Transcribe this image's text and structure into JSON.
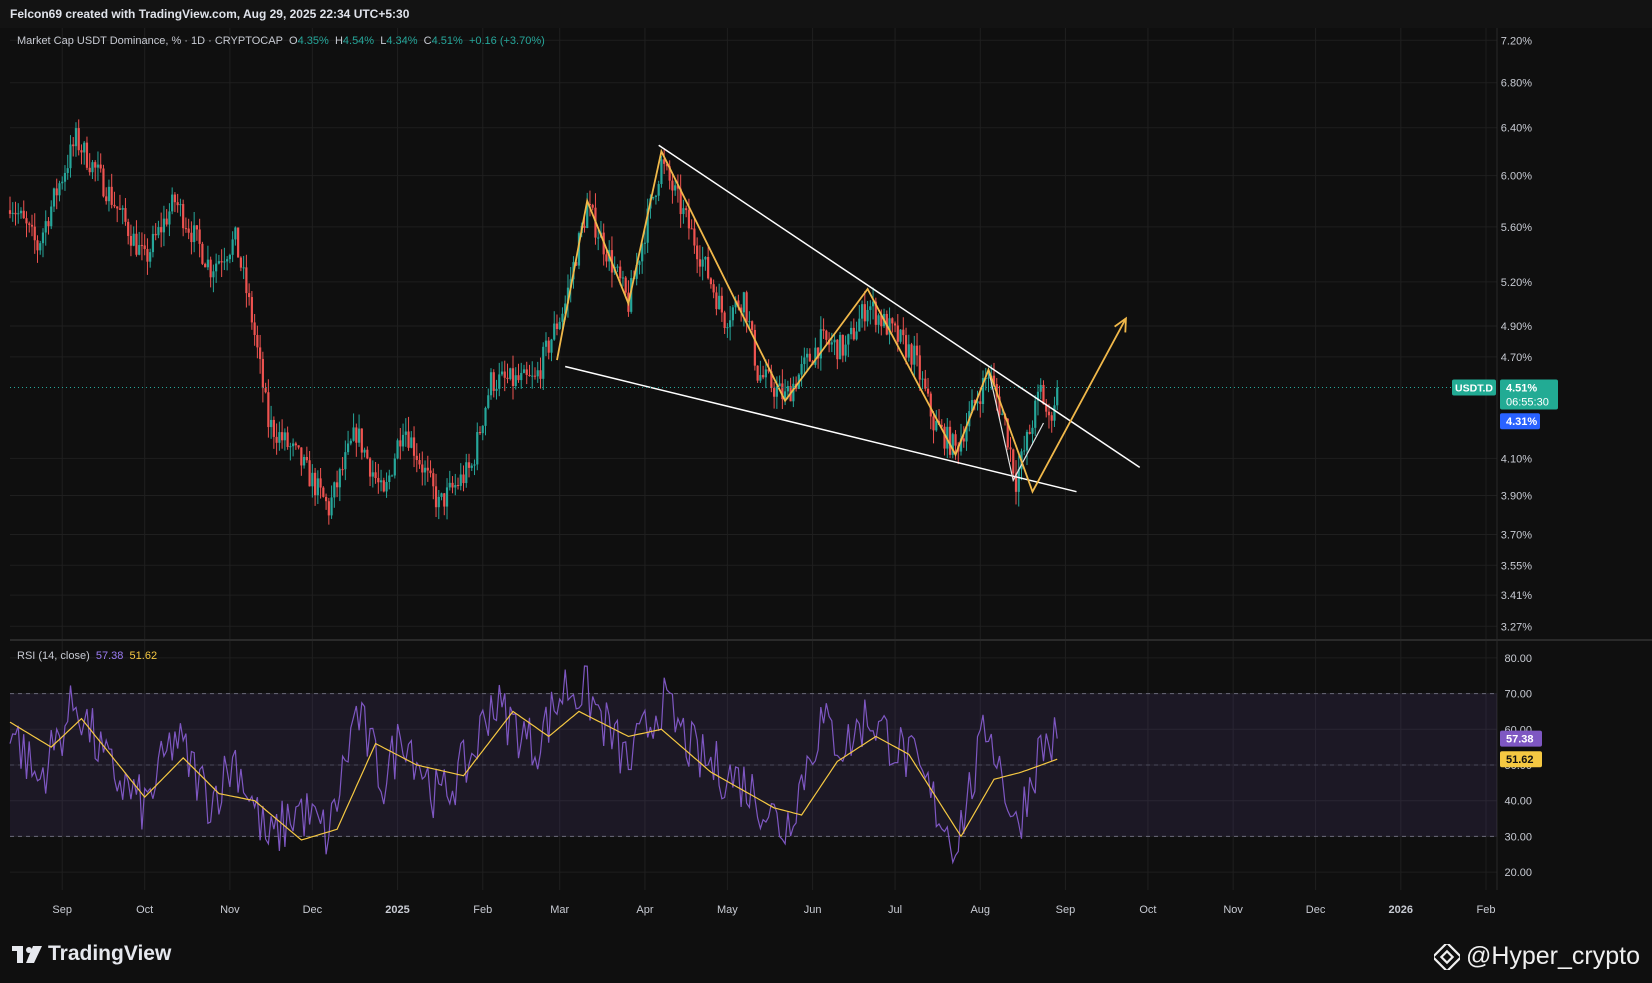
{
  "header": {
    "credit": "Felcon69 created with TradingView.com, Aug 29, 2025 22:34 UTC+5:30"
  },
  "legend": {
    "symbol": "Market Cap USDT Dominance, % · 1D · CRYPTOCAP",
    "o_label": "O",
    "o_value": "4.35%",
    "h_label": "H",
    "h_value": "4.54%",
    "l_label": "L",
    "l_value": "4.34%",
    "c_label": "C",
    "c_value": "4.51%",
    "change": "+0.16 (+3.70%)"
  },
  "rsi_legend": {
    "label": "RSI (14, close)",
    "value1": "57.38",
    "value2": "51.62"
  },
  "footer": {
    "brand": "TradingView",
    "watermark": "@Hyper_crypto"
  },
  "colors": {
    "up": "#26a69a",
    "down": "#ef5350",
    "rsi": "#7e57c2",
    "rsi_ma": "#f5c842",
    "pattern": "#f0b84a",
    "trendline": "#ffffff",
    "badge_green": "#22ab94",
    "badge_blue": "#2962ff"
  },
  "icons": {
    "tv_logo": "tradingview-logo-icon",
    "binance": "binance-diamond-icon"
  },
  "chart_data": [
    {
      "type": "candlestick",
      "title": "Market Cap USDT Dominance, % · 1D · CRYPTOCAP",
      "y_scale": "log",
      "ylim": [
        3.21,
        7.32
      ],
      "y_ticks": [
        "7.20%",
        "6.80%",
        "6.40%",
        "6.00%",
        "5.60%",
        "5.20%",
        "4.90%",
        "4.70%",
        "4.10%",
        "3.90%",
        "3.70%",
        "3.55%",
        "3.41%",
        "3.27%"
      ],
      "y_tick_values": [
        7.2,
        6.8,
        6.4,
        6.0,
        5.6,
        5.2,
        4.9,
        4.7,
        4.1,
        3.9,
        3.7,
        3.55,
        3.41,
        3.27
      ],
      "x_ticks": [
        "Sep",
        "Oct",
        "Nov",
        "Dec",
        "2025",
        "Feb",
        "Mar",
        "Apr",
        "May",
        "Jun",
        "Jul",
        "Aug",
        "Sep",
        "Oct",
        "Nov",
        "Dec",
        "2026",
        "Feb"
      ],
      "x_tick_dates": [
        "2024-09-01",
        "2024-10-01",
        "2024-11-01",
        "2024-12-01",
        "2025-01-01",
        "2025-02-01",
        "2025-03-01",
        "2025-04-01",
        "2025-05-01",
        "2025-06-01",
        "2025-07-01",
        "2025-08-01",
        "2025-09-01",
        "2025-10-01",
        "2025-11-01",
        "2025-12-01",
        "2026-01-01",
        "2026-02-01"
      ],
      "x_range": [
        "2024-08-13",
        "2026-02-05"
      ],
      "anchors": [
        {
          "date": "2024-08-13",
          "value": 5.8
        },
        {
          "date": "2024-08-23",
          "value": 5.45
        },
        {
          "date": "2024-09-06",
          "value": 6.3
        },
        {
          "date": "2024-09-17",
          "value": 5.9
        },
        {
          "date": "2024-10-01",
          "value": 5.35
        },
        {
          "date": "2024-10-12",
          "value": 5.8
        },
        {
          "date": "2024-10-25",
          "value": 5.3
        },
        {
          "date": "2024-11-03",
          "value": 5.5
        },
        {
          "date": "2024-11-09",
          "value": 4.95
        },
        {
          "date": "2024-11-15",
          "value": 4.3
        },
        {
          "date": "2024-11-26",
          "value": 4.1
        },
        {
          "date": "2024-12-07",
          "value": 3.83
        },
        {
          "date": "2024-12-17",
          "value": 4.25
        },
        {
          "date": "2024-12-27",
          "value": 3.88
        },
        {
          "date": "2025-01-03",
          "value": 4.3
        },
        {
          "date": "2025-01-16",
          "value": 3.85
        },
        {
          "date": "2025-01-28",
          "value": 4.05
        },
        {
          "date": "2025-02-04",
          "value": 4.55
        },
        {
          "date": "2025-02-20",
          "value": 4.55
        },
        {
          "date": "2025-03-03",
          "value": 5.05
        },
        {
          "date": "2025-03-11",
          "value": 5.75
        },
        {
          "date": "2025-03-26",
          "value": 5.05
        },
        {
          "date": "2025-04-07",
          "value": 6.1
        },
        {
          "date": "2025-04-20",
          "value": 5.45
        },
        {
          "date": "2025-04-30",
          "value": 4.95
        },
        {
          "date": "2025-05-07",
          "value": 5.1
        },
        {
          "date": "2025-05-12",
          "value": 4.6
        },
        {
          "date": "2025-05-22",
          "value": 4.45
        },
        {
          "date": "2025-06-04",
          "value": 4.8
        },
        {
          "date": "2025-06-13",
          "value": 4.75
        },
        {
          "date": "2025-06-21",
          "value": 5.05
        },
        {
          "date": "2025-06-28",
          "value": 4.9
        },
        {
          "date": "2025-07-08",
          "value": 4.7
        },
        {
          "date": "2025-07-15",
          "value": 4.3
        },
        {
          "date": "2025-07-23",
          "value": 4.15
        },
        {
          "date": "2025-08-04",
          "value": 4.6
        },
        {
          "date": "2025-08-10",
          "value": 4.3
        },
        {
          "date": "2025-08-14",
          "value": 3.98
        },
        {
          "date": "2025-08-19",
          "value": 4.25
        },
        {
          "date": "2025-08-23",
          "value": 4.5
        },
        {
          "date": "2025-08-26",
          "value": 4.3
        },
        {
          "date": "2025-08-29",
          "value": 4.51
        }
      ],
      "last_price_label": "USDT.D",
      "last_price": "4.51%",
      "countdown": "06:55:30",
      "secondary_price": "4.31%",
      "secondary_price_value": 4.31,
      "pattern_zigzag": [
        {
          "date": "2025-02-28",
          "value": 4.68
        },
        {
          "date": "2025-03-11",
          "value": 5.8
        },
        {
          "date": "2025-03-26",
          "value": 5.05
        },
        {
          "date": "2025-04-07",
          "value": 6.2
        },
        {
          "date": "2025-05-22",
          "value": 4.43
        },
        {
          "date": "2025-06-21",
          "value": 5.15
        },
        {
          "date": "2025-07-23",
          "value": 4.12
        },
        {
          "date": "2025-08-04",
          "value": 4.62
        },
        {
          "date": "2025-08-20",
          "value": 3.92
        },
        {
          "date": "2025-09-23",
          "value": 4.95
        }
      ],
      "trendline_upper": [
        {
          "date": "2025-04-06",
          "value": 6.25
        },
        {
          "date": "2025-09-28",
          "value": 4.05
        }
      ],
      "trendline_lower": [
        {
          "date": "2025-03-03",
          "value": 4.64
        },
        {
          "date": "2025-09-05",
          "value": 3.92
        }
      ],
      "inner_swing": [
        {
          "date": "2025-07-23",
          "value": 4.12
        },
        {
          "date": "2025-08-04",
          "value": 4.62
        },
        {
          "date": "2025-08-13",
          "value": 3.98
        },
        {
          "date": "2025-08-24",
          "value": 4.3
        }
      ]
    },
    {
      "type": "line",
      "title": "RSI (14, close)",
      "ylim": [
        15,
        85
      ],
      "y_ticks": [
        "80.00",
        "70.00",
        "60.00",
        "50.00",
        "40.00",
        "30.00",
        "20.00"
      ],
      "y_tick_values": [
        80,
        70,
        60,
        50,
        40,
        30,
        20
      ],
      "band": [
        30,
        70
      ],
      "x_ticks": [
        "Sep",
        "Oct",
        "Nov",
        "Dec",
        "2025",
        "Feb",
        "Mar",
        "Apr",
        "May",
        "Jun",
        "Jul",
        "Aug",
        "Sep",
        "Oct",
        "Nov",
        "Dec",
        "2026",
        "Feb"
      ],
      "rsi_anchors": [
        {
          "date": "2024-08-13",
          "value": 62
        },
        {
          "date": "2024-08-23",
          "value": 45
        },
        {
          "date": "2024-09-06",
          "value": 68
        },
        {
          "date": "2024-09-17",
          "value": 50
        },
        {
          "date": "2024-10-01",
          "value": 38
        },
        {
          "date": "2024-10-12",
          "value": 58
        },
        {
          "date": "2024-10-25",
          "value": 40
        },
        {
          "date": "2024-11-03",
          "value": 52
        },
        {
          "date": "2024-11-15",
          "value": 28
        },
        {
          "date": "2024-11-26",
          "value": 38
        },
        {
          "date": "2024-12-07",
          "value": 30
        },
        {
          "date": "2024-12-17",
          "value": 65
        },
        {
          "date": "2024-12-27",
          "value": 45
        },
        {
          "date": "2025-01-03",
          "value": 60
        },
        {
          "date": "2025-01-16",
          "value": 40
        },
        {
          "date": "2025-01-28",
          "value": 52
        },
        {
          "date": "2025-02-04",
          "value": 68
        },
        {
          "date": "2025-02-20",
          "value": 55
        },
        {
          "date": "2025-03-03",
          "value": 72
        },
        {
          "date": "2025-03-11",
          "value": 70
        },
        {
          "date": "2025-03-26",
          "value": 50
        },
        {
          "date": "2025-04-07",
          "value": 68
        },
        {
          "date": "2025-04-20",
          "value": 52
        },
        {
          "date": "2025-05-07",
          "value": 45
        },
        {
          "date": "2025-05-22",
          "value": 32
        },
        {
          "date": "2025-06-04",
          "value": 62
        },
        {
          "date": "2025-06-13",
          "value": 55
        },
        {
          "date": "2025-06-21",
          "value": 64
        },
        {
          "date": "2025-07-08",
          "value": 50
        },
        {
          "date": "2025-07-23",
          "value": 28
        },
        {
          "date": "2025-08-04",
          "value": 62
        },
        {
          "date": "2025-08-14",
          "value": 32
        },
        {
          "date": "2025-08-23",
          "value": 55
        },
        {
          "date": "2025-08-29",
          "value": 57.38
        }
      ],
      "ma_anchors": [
        {
          "date": "2024-08-13",
          "value": 62
        },
        {
          "date": "2024-08-28",
          "value": 55
        },
        {
          "date": "2024-09-08",
          "value": 63
        },
        {
          "date": "2024-10-01",
          "value": 41
        },
        {
          "date": "2024-10-15",
          "value": 52
        },
        {
          "date": "2024-10-28",
          "value": 42
        },
        {
          "date": "2024-11-10",
          "value": 40
        },
        {
          "date": "2024-11-27",
          "value": 29
        },
        {
          "date": "2024-12-10",
          "value": 32
        },
        {
          "date": "2024-12-24",
          "value": 56
        },
        {
          "date": "2025-01-08",
          "value": 50
        },
        {
          "date": "2025-01-25",
          "value": 47
        },
        {
          "date": "2025-02-12",
          "value": 65
        },
        {
          "date": "2025-02-25",
          "value": 58
        },
        {
          "date": "2025-03-08",
          "value": 65
        },
        {
          "date": "2025-03-26",
          "value": 58
        },
        {
          "date": "2025-04-07",
          "value": 60
        },
        {
          "date": "2025-04-25",
          "value": 48
        },
        {
          "date": "2025-05-18",
          "value": 38
        },
        {
          "date": "2025-05-28",
          "value": 36
        },
        {
          "date": "2025-06-10",
          "value": 51
        },
        {
          "date": "2025-06-24",
          "value": 58
        },
        {
          "date": "2025-07-06",
          "value": 53
        },
        {
          "date": "2025-07-25",
          "value": 30
        },
        {
          "date": "2025-08-06",
          "value": 46
        },
        {
          "date": "2025-08-16",
          "value": 48
        },
        {
          "date": "2025-08-29",
          "value": 51.62
        }
      ]
    }
  ]
}
